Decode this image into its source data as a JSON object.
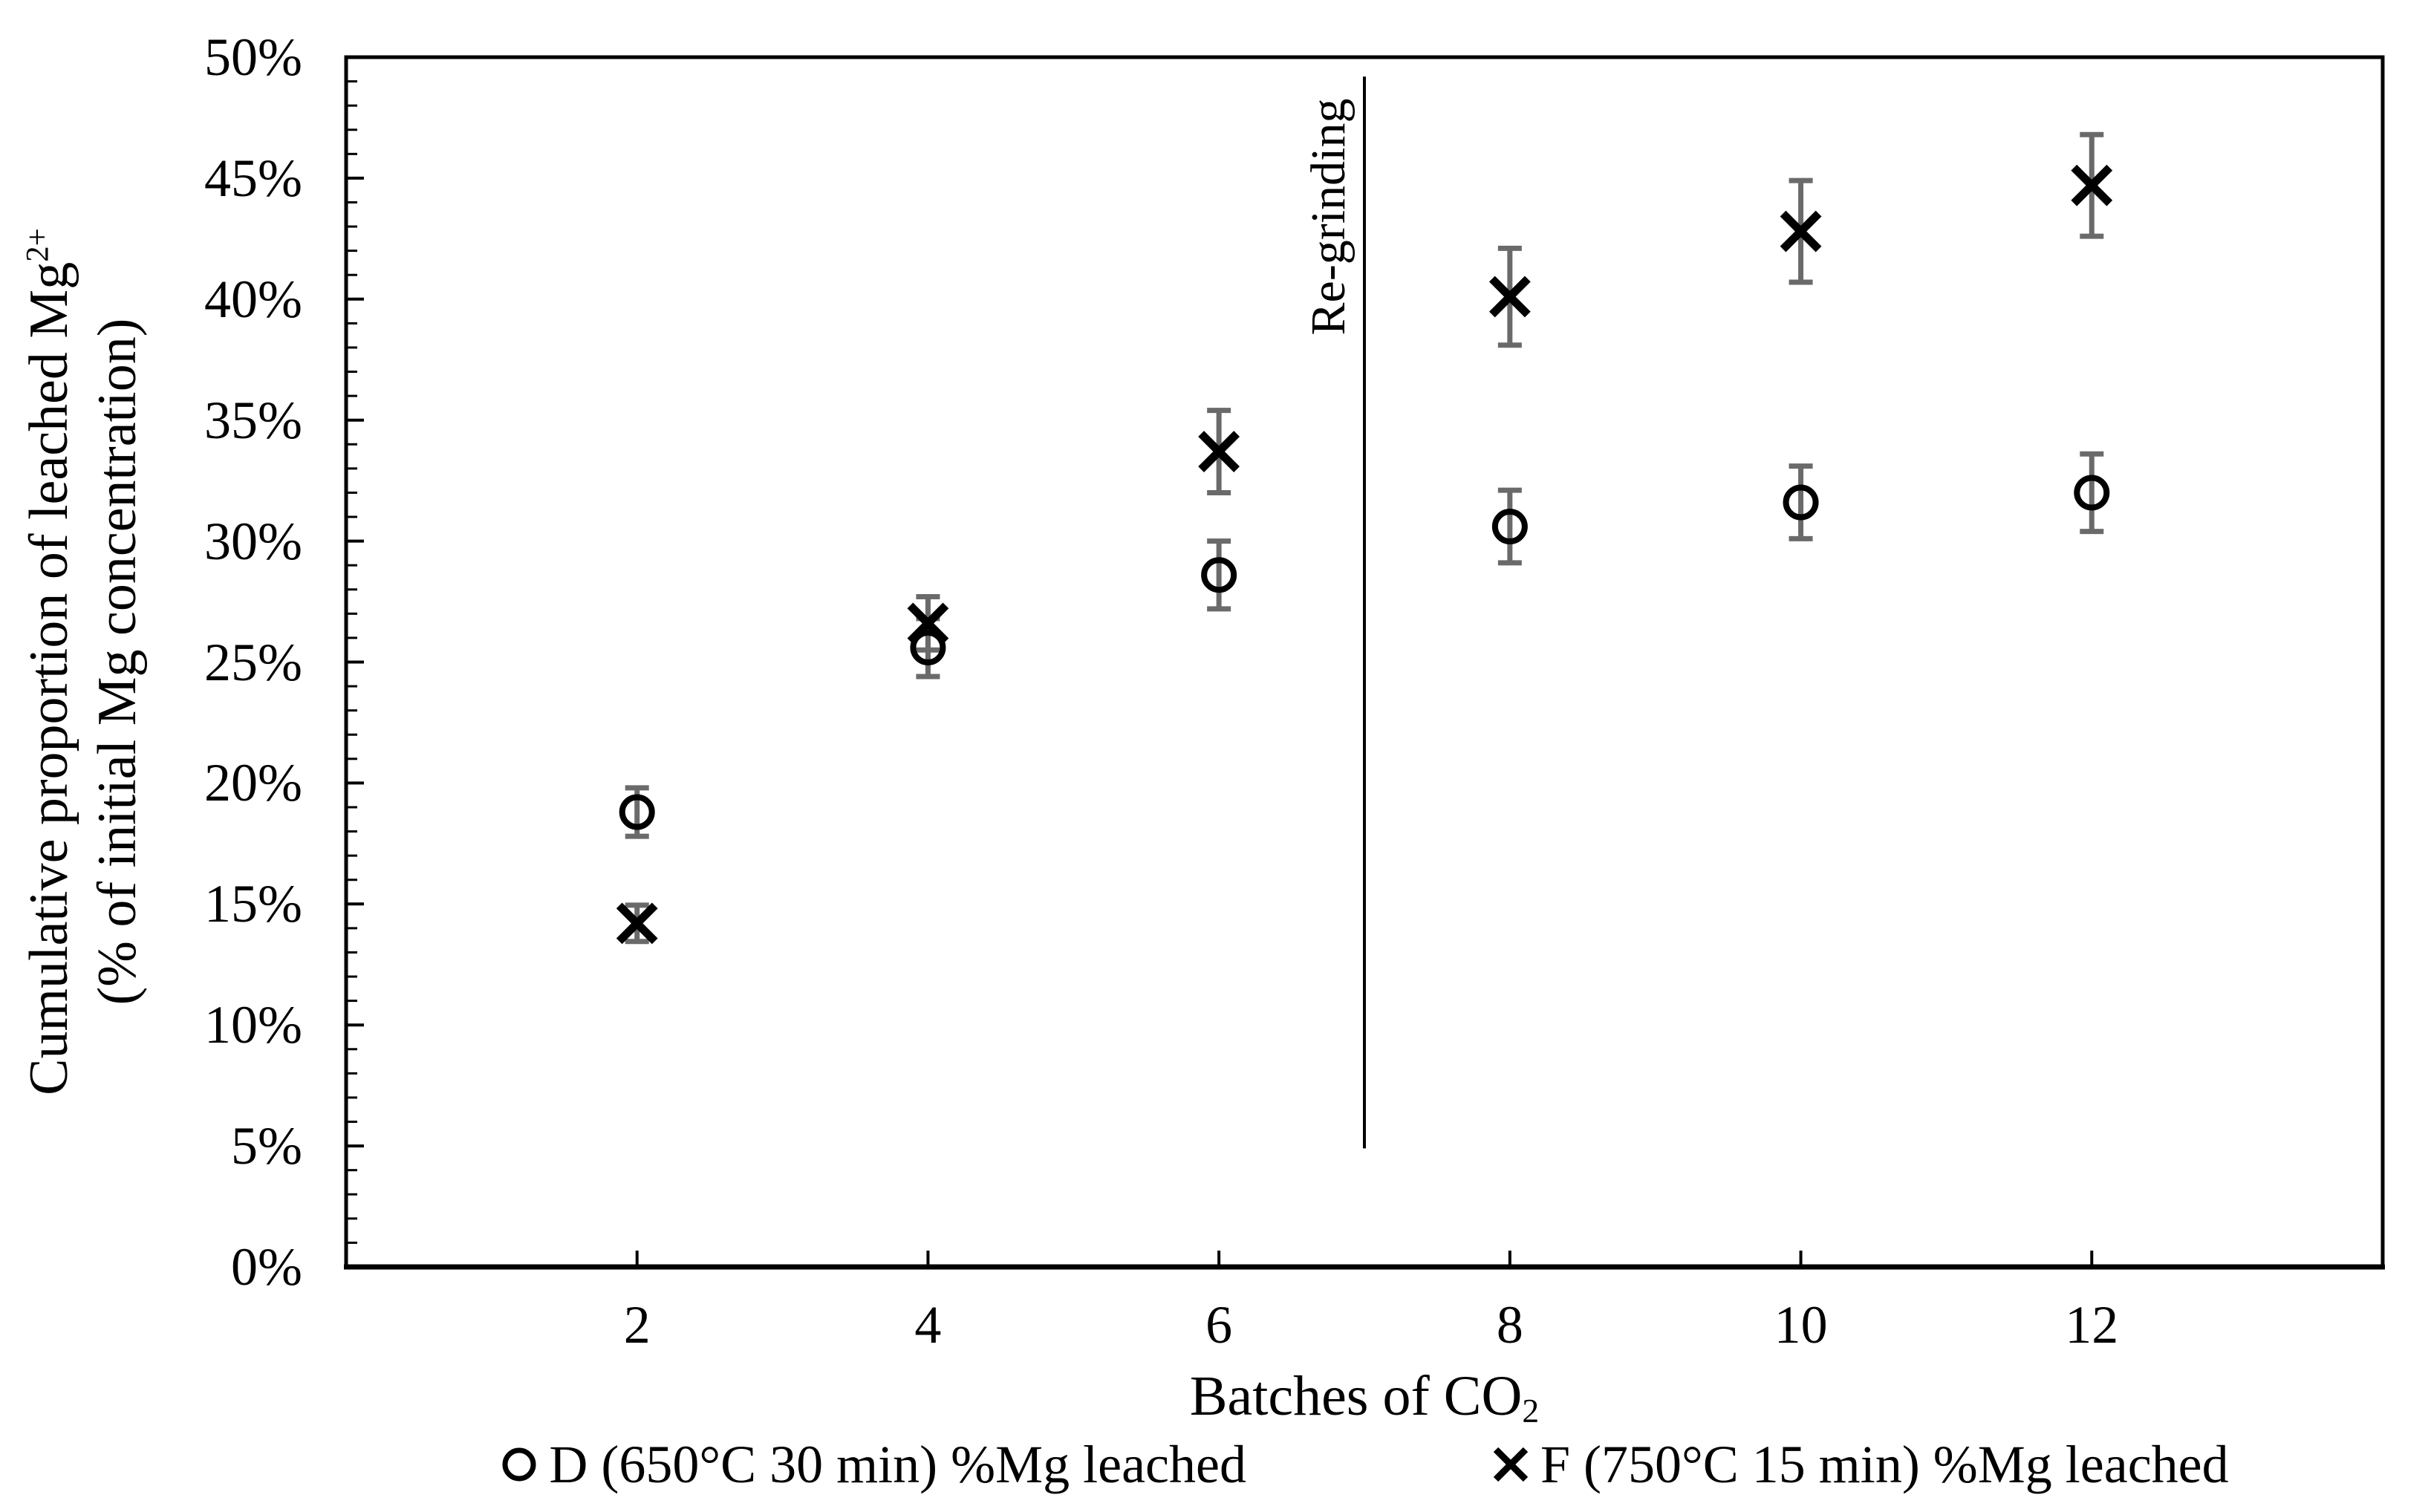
{
  "chart_data": {
    "type": "scatter",
    "x": [
      2,
      4,
      6,
      8,
      10,
      12
    ],
    "series": [
      {
        "name": "D (650°C 30 min) %Mg leached",
        "marker": "circle",
        "values": [
          18.8,
          25.6,
          28.6,
          30.6,
          31.6,
          32.0
        ],
        "errors": [
          1.0,
          1.2,
          1.4,
          1.5,
          1.5,
          1.6
        ]
      },
      {
        "name": "F (750°C 15 min) %Mg leached",
        "marker": "x",
        "values": [
          14.2,
          26.6,
          33.7,
          40.1,
          42.8,
          44.7
        ],
        "errors": [
          0.75,
          1.1,
          1.7,
          2.0,
          2.1,
          2.1
        ]
      }
    ],
    "xlabel_main": "Batches of CO",
    "xlabel_sub": "2",
    "ylabel_line1_main": "Cumulative proportion of leached Mg",
    "ylabel_line1_sup": "2+",
    "ylabel_line2": "(% of initial Mg concentration)",
    "xlim": [
      0,
      14
    ],
    "ylim": [
      0,
      50
    ],
    "x_ticks": [
      2,
      4,
      6,
      8,
      10,
      12
    ],
    "x_tick_labels": [
      "2",
      "4",
      "6",
      "8",
      "10",
      "12"
    ],
    "y_tick_step_major": 5,
    "y_tick_step_minor": 1,
    "y_tick_labels": [
      "0%",
      "5%",
      "10%",
      "15%",
      "20%",
      "25%",
      "30%",
      "35%",
      "40%",
      "45%",
      "50%"
    ],
    "annotation": {
      "label": "Re-grinding",
      "x": 7,
      "y_from": 4.9,
      "y_to": 49.2
    },
    "legend_position": "bottom",
    "grid": "off",
    "colors": {
      "marker": "#000000",
      "error_bar": "#6a6a6a",
      "axis": "#000000",
      "text": "#000000",
      "background": "#ffffff"
    }
  }
}
